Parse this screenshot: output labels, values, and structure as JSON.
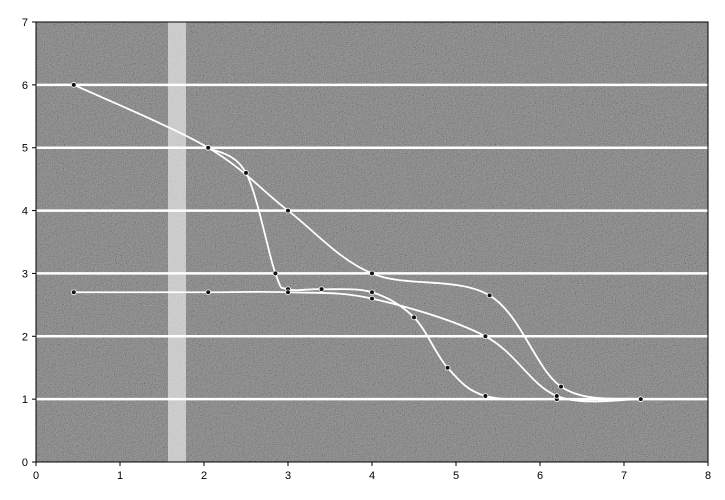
{
  "chart_data": {
    "type": "scatter",
    "title": "",
    "xlabel": "",
    "ylabel": "",
    "xlim": [
      0,
      8
    ],
    "ylim": [
      0,
      7
    ],
    "x_ticks": [
      "0",
      "1",
      "2",
      "3",
      "4",
      "5",
      "6",
      "7",
      "8"
    ],
    "y_ticks": [
      "0",
      "1",
      "2",
      "3",
      "4",
      "5",
      "6",
      "7"
    ],
    "grid": {
      "horizontal": true,
      "vertical": false
    },
    "legend": "none",
    "colors": {
      "plot_background": "#8a8a8a",
      "gridline": "#ffffff",
      "series_line": "#ffffff",
      "marker": "#111111",
      "axis": "#000000"
    },
    "series": [
      {
        "style": "smoothed line with markers",
        "points": [
          [
            0.45,
            6.0
          ],
          [
            2.05,
            5.0
          ],
          [
            3.0,
            4.0
          ],
          [
            4.0,
            3.0
          ],
          [
            5.4,
            2.65
          ],
          [
            6.25,
            1.2
          ],
          [
            7.2,
            1.0
          ]
        ]
      },
      {
        "style": "smoothed line with markers",
        "points": [
          [
            2.05,
            5.0
          ],
          [
            2.5,
            4.6
          ],
          [
            2.85,
            3.0
          ],
          [
            3.0,
            2.75
          ],
          [
            3.4,
            2.75
          ],
          [
            4.0,
            2.7
          ],
          [
            4.5,
            2.3
          ],
          [
            4.9,
            1.5
          ],
          [
            5.35,
            1.05
          ],
          [
            6.2,
            1.0
          ],
          [
            7.2,
            1.0
          ]
        ]
      },
      {
        "style": "smoothed line with markers",
        "points": [
          [
            0.45,
            2.7
          ],
          [
            2.05,
            2.7
          ],
          [
            3.0,
            2.7
          ],
          [
            4.0,
            2.6
          ],
          [
            5.35,
            2.0
          ],
          [
            6.2,
            1.05
          ],
          [
            7.2,
            1.0
          ]
        ]
      }
    ]
  }
}
